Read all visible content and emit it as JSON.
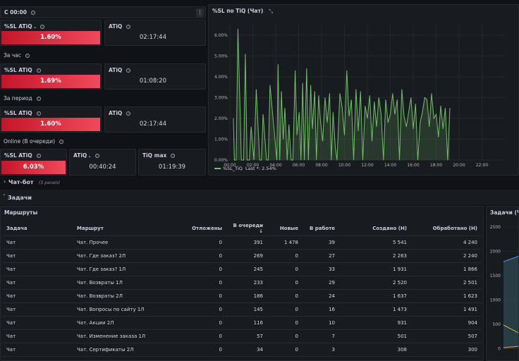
{
  "top_bar": {
    "title": "С 00:00",
    "menu_icon": "kebab-menu-icon"
  },
  "rows": [
    {
      "label": ""
    },
    {
      "label": "За час"
    },
    {
      "label": "За период"
    },
    {
      "label": "Online (В очереди)"
    }
  ],
  "stats": {
    "r1_sl_title": "%SL ATiQ .",
    "r1_sl_value": "1.60%",
    "r1_atiq_title": "ATiQ",
    "r1_atiq_value": "02:17:44",
    "r2_sl_title": "%SL ATiQ",
    "r2_sl_value": "1.69%",
    "r2_atiq_title": "ATiQ",
    "r2_atiq_value": "01:08:20",
    "r3_sl_title": "%SL ATiQ",
    "r3_sl_value": "1.60%",
    "r3_atiq_title": "ATiQ",
    "r3_atiq_value": "02:17:44",
    "r4_sl_title": "%SL ATiQ",
    "r4_sl_value": "6.03%",
    "r4_atiq_title": "ATiQ .",
    "r4_atiq_value": "00:40:24",
    "r4_max_title": "TiQ max",
    "r4_max_value": "01:19:39"
  },
  "sections": {
    "chatbot": "Чат-бот",
    "chatbot_count": "(3 panels)",
    "tasks": "Задачи"
  },
  "chart_panel": {
    "title": "%SL по TiQ (Чат)",
    "legend_name": "%SL_TiQ",
    "legend_last": "Last *: 2.54%"
  },
  "chart_data": {
    "type": "area",
    "title": "%SL по TiQ (Чат)",
    "x_ticks": [
      "00:00",
      "02:00",
      "04:00",
      "06:00",
      "08:00",
      "10:00",
      "12:00",
      "14:00",
      "16:00",
      "18:00",
      "20:00",
      "22:00"
    ],
    "y_ticks": [
      "0.00%",
      "1.00%",
      "2.00%",
      "3.00%",
      "4.00%",
      "5.00%",
      "6.00%"
    ],
    "ylim": [
      0,
      6.5
    ],
    "xlim": [
      0,
      24
    ],
    "series": [
      {
        "name": "%SL_TiQ",
        "x": [
          0.3,
          0.4,
          0.55,
          0.7,
          1.0,
          1.2,
          1.35,
          1.5,
          1.7,
          1.85,
          2.1,
          2.3,
          2.6,
          2.75,
          2.9,
          3.2,
          3.35,
          3.5,
          4.1,
          4.2,
          4.35,
          4.5,
          4.65,
          4.8,
          5.0,
          5.15,
          5.35,
          5.5,
          5.7,
          5.85,
          6.05,
          6.2,
          6.35,
          6.5,
          6.7,
          6.85,
          7.05,
          7.2,
          7.4,
          7.55,
          7.75,
          7.9,
          8.1,
          8.3,
          8.5,
          8.7,
          8.85,
          9.0,
          9.2,
          9.35,
          9.6,
          9.8,
          10.0,
          10.2,
          10.4,
          10.6,
          10.8,
          11.0,
          11.2,
          11.4,
          11.6,
          11.8,
          12.0,
          12.2,
          12.4,
          12.6,
          12.8,
          13.0,
          13.2,
          13.4,
          13.6,
          13.8,
          14.0,
          14.2,
          14.4,
          14.6,
          14.8,
          15.0,
          15.2,
          15.4,
          15.6,
          15.8,
          16.0,
          16.2,
          16.4,
          16.6,
          16.8,
          17.0,
          17.2,
          17.4,
          17.6,
          17.8,
          18.0,
          18.2,
          18.4,
          18.6,
          18.8,
          19.0,
          19.2
        ],
        "y": [
          2.0,
          0.0,
          0.0,
          6.3,
          0.0,
          0.0,
          5.1,
          0.0,
          0.0,
          1.6,
          0.0,
          3.4,
          0.0,
          0.0,
          2.2,
          0.0,
          0.0,
          3.6,
          0.0,
          4.6,
          0.0,
          3.3,
          1.0,
          2.5,
          0.0,
          1.7,
          0.0,
          0.0,
          4.3,
          1.2,
          2.3,
          0.0,
          3.7,
          0.0,
          4.4,
          0.0,
          3.6,
          1.5,
          3.3,
          0.0,
          3.1,
          1.9,
          0.9,
          3.0,
          1.8,
          3.2,
          0.0,
          2.3,
          0.6,
          0.0,
          3.2,
          2.5,
          1.2,
          4.3,
          2.1,
          2.9,
          0.0,
          3.4,
          1.4,
          3.3,
          0.0,
          2.6,
          2.0,
          3.1,
          0.9,
          2.8,
          1.6,
          3.0,
          2.2,
          0.0,
          2.9,
          1.8,
          2.2,
          3.2,
          2.2,
          2.9,
          0.0,
          3.4,
          2.1,
          1.6,
          2.3,
          3.0,
          1.5,
          2.7,
          0.0,
          1.8,
          2.3,
          3.0,
          2.9,
          1.6,
          3.2,
          2.0,
          2.2,
          1.1,
          2.6,
          1.5,
          2.5,
          0.0,
          2.5
        ]
      }
    ]
  },
  "routes_panel": {
    "title": "Маршруты"
  },
  "table": {
    "headers": {
      "task": "Задача",
      "route": "Маршрут",
      "postponed": "Отложены",
      "queue": "В очереди",
      "new": "Новые",
      "inwork": "В работе",
      "created": "Создано (Н)",
      "processed": "Обработано (Н)"
    },
    "sort_icon": "sort-desc-icon",
    "rows": [
      {
        "task": "Чат",
        "route": "Чат. Прочее",
        "postponed": "0",
        "queue": "391",
        "new": "1 478",
        "inwork": "39",
        "created": "5 541",
        "processed": "4 240"
      },
      {
        "task": "Чат",
        "route": "Чат. Где заказ? 2Л",
        "postponed": "0",
        "queue": "269",
        "new": "0",
        "inwork": "27",
        "created": "2 263",
        "processed": "2 240"
      },
      {
        "task": "Чат",
        "route": "Чат. Где заказ? 1Л",
        "postponed": "0",
        "queue": "245",
        "new": "0",
        "inwork": "33",
        "created": "1 931",
        "processed": "1 866"
      },
      {
        "task": "Чат",
        "route": "Чат. Возвраты 1Л",
        "postponed": "0",
        "queue": "233",
        "new": "0",
        "inwork": "29",
        "created": "2 520",
        "processed": "2 501"
      },
      {
        "task": "Чат",
        "route": "Чат. Возвраты 2Л",
        "postponed": "0",
        "queue": "186",
        "new": "0",
        "inwork": "24",
        "created": "1 637",
        "processed": "1 623"
      },
      {
        "task": "Чат",
        "route": "Чат. Вопросы по сайту 1Л",
        "postponed": "0",
        "queue": "145",
        "new": "0",
        "inwork": "16",
        "created": "1 473",
        "processed": "1 491"
      },
      {
        "task": "Чат",
        "route": "Чат. Акции 2Л",
        "postponed": "0",
        "queue": "116",
        "new": "0",
        "inwork": "10",
        "created": "931",
        "processed": "904"
      },
      {
        "task": "Чат",
        "route": "Чат. Изменение заказа 1Л",
        "postponed": "0",
        "queue": "57",
        "new": "0",
        "inwork": "7",
        "created": "501",
        "processed": "507"
      },
      {
        "task": "Чат",
        "route": "Чат. Сертификаты 2Л",
        "postponed": "0",
        "queue": "34",
        "new": "0",
        "inwork": "3",
        "created": "308",
        "processed": "300"
      }
    ]
  },
  "right_panel": {
    "title": "Задачи (Чат",
    "y_ticks": [
      "2500",
      "2000",
      "1500",
      "1000",
      "500",
      "0"
    ]
  },
  "colors": {
    "accent_green": "#73bf69",
    "red": "#e02f44",
    "panel": "#181b1f",
    "bg": "#111217"
  }
}
